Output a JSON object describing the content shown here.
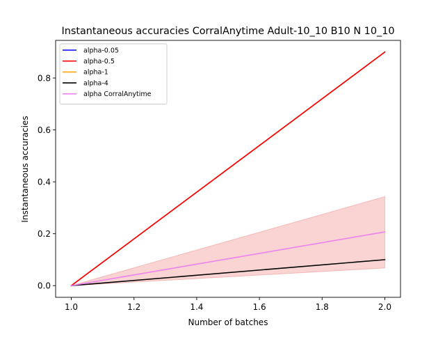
{
  "chart_data": {
    "type": "line",
    "title": "Instantaneous accuracies CorralAnytime Adult-10_10 B10 N 10_10",
    "xlabel": "Number of batches",
    "ylabel": "Instantaneous accuracies",
    "xlim": [
      0.95,
      2.05
    ],
    "ylim": [
      -0.045,
      0.945
    ],
    "x_ticks": [
      1.0,
      1.2,
      1.4,
      1.6,
      1.8,
      2.0
    ],
    "x_tick_labels": [
      "1.0",
      "1.2",
      "1.4",
      "1.6",
      "1.8",
      "2.0"
    ],
    "y_ticks": [
      0.0,
      0.2,
      0.4,
      0.6,
      0.8
    ],
    "y_tick_labels": [
      "0.0",
      "0.2",
      "0.4",
      "0.6",
      "0.8"
    ],
    "grid": false,
    "legend_position": "top-left",
    "x": [
      1.0,
      2.0
    ],
    "series": [
      {
        "name": "alpha-0.05",
        "color": "#0000ff",
        "values": [
          0.0,
          0.9
        ]
      },
      {
        "name": "alpha-0.5",
        "color": "#ff0000",
        "values": [
          0.0,
          0.9
        ]
      },
      {
        "name": "alpha-1",
        "color": "#ffa500",
        "values": [
          0.0,
          0.9
        ]
      },
      {
        "name": "alpha-4",
        "color": "#000000",
        "values": [
          0.0,
          0.1
        ]
      },
      {
        "name": "alpha CorralAnytime",
        "color": "#ee82ee",
        "values": [
          0.0,
          0.207
        ]
      }
    ],
    "bands": [
      {
        "series": "alpha CorralAnytime",
        "color": "#f08080",
        "lower": [
          0.0,
          0.068
        ],
        "upper": [
          0.0,
          0.343
        ]
      }
    ],
    "draw_order": [
      "alpha-0.05",
      "alpha-1",
      "alpha-4",
      "alpha-0.5",
      "alpha CorralAnytime"
    ]
  }
}
